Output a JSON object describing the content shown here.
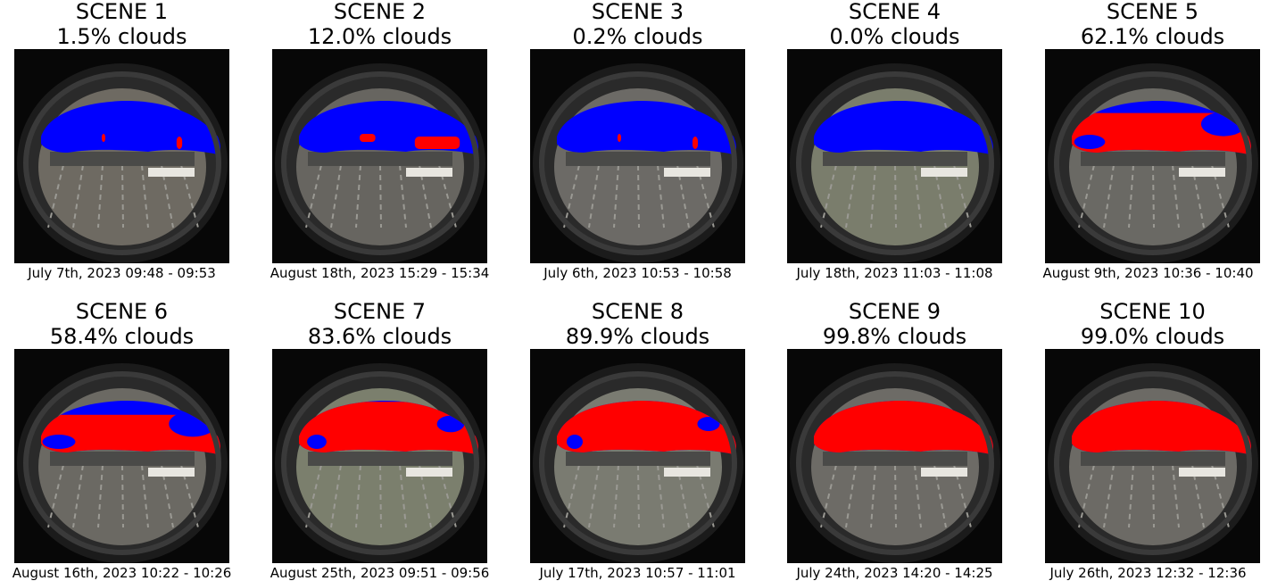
{
  "colors": {
    "clear_sky": "#0000ff",
    "cloud": "#ff0000"
  },
  "scenes": [
    {
      "title": "SCENE 1",
      "clouds": "1.5% clouds",
      "date": "July 7th, 2023 09:48 - 09:53",
      "tone": "#6e6a62"
    },
    {
      "title": "SCENE 2",
      "clouds": "12.0% clouds",
      "date": "August 18th, 2023 15:29 - 15:34",
      "tone": "#676560"
    },
    {
      "title": "SCENE 3",
      "clouds": "0.2% clouds",
      "date": "July 6th, 2023 10:53 - 10:58",
      "tone": "#6c6a66"
    },
    {
      "title": "SCENE 4",
      "clouds": "0.0% clouds",
      "date": "July 18th, 2023 11:03 - 11:08",
      "tone": "#7a7d6c"
    },
    {
      "title": "SCENE 5",
      "clouds": "62.1% clouds",
      "date": "August 9th, 2023 10:36 - 10:40",
      "tone": "#6a6964"
    },
    {
      "title": "SCENE 6",
      "clouds": "58.4% clouds",
      "date": "August 16th, 2023 10:22 - 10:26",
      "tone": "#6b6963"
    },
    {
      "title": "SCENE 7",
      "clouds": "83.6% clouds",
      "date": "August 25th, 2023 09:51 - 09:56",
      "tone": "#7b7f6d"
    },
    {
      "title": "SCENE 8",
      "clouds": "89.9% clouds",
      "date": "July 17th, 2023 10:57 - 11:01",
      "tone": "#7a7b71"
    },
    {
      "title": "SCENE 9",
      "clouds": "99.8% clouds",
      "date": "July 24th, 2023 14:20 - 14:25",
      "tone": "#6d6b66"
    },
    {
      "title": "SCENE 10",
      "clouds": "99.0% clouds",
      "date": "July 26th, 2023 12:32 - 12:36",
      "tone": "#6c6a65"
    }
  ]
}
